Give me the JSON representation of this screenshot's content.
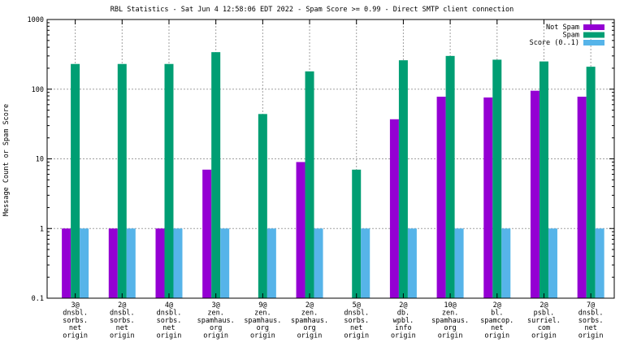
{
  "chart_data": {
    "type": "bar",
    "title": "RBL Statistics - Sat Jun  4 12:58:06 EDT 2022 - Spam Score >= 0.99 - Direct SMTP client connection",
    "ylabel": "Message Count or Spam Score",
    "xlabel": "",
    "yscale": "log",
    "ylim": [
      0.1,
      1000
    ],
    "yticks": [
      "0.1",
      "1",
      "10",
      "100",
      "1000"
    ],
    "grid": true,
    "legend_position": "top-right",
    "categories": [
      [
        "3@",
        "dnsbl.",
        "sorbs.",
        "net",
        "origin"
      ],
      [
        "2@",
        "dnsbl.",
        "sorbs.",
        "net",
        "origin"
      ],
      [
        "4@",
        "dnsbl.",
        "sorbs.",
        "net",
        "origin"
      ],
      [
        "3@",
        "zen.",
        "spamhaus.",
        "org",
        "origin"
      ],
      [
        "9@",
        "zen.",
        "spamhaus.",
        "org",
        "origin"
      ],
      [
        "2@",
        "zen.",
        "spamhaus.",
        "org",
        "origin"
      ],
      [
        "5@",
        "dnsbl.",
        "sorbs.",
        "net",
        "origin"
      ],
      [
        "2@",
        "db.",
        "wpbl.",
        "info",
        "origin"
      ],
      [
        "10@",
        "zen.",
        "spamhaus.",
        "org",
        "origin"
      ],
      [
        "2@",
        "bl.",
        "spamcop.",
        "net",
        "origin"
      ],
      [
        "2@",
        "psbl.",
        "surriel.",
        "com",
        "origin"
      ],
      [
        "7@",
        "dnsbl.",
        "sorbs.",
        "net",
        "origin"
      ]
    ],
    "series": [
      {
        "name": "Not Spam",
        "color": "#9400d3",
        "values": [
          1,
          1,
          1,
          7,
          null,
          9,
          null,
          37,
          78,
          76,
          95,
          78
        ]
      },
      {
        "name": "Spam",
        "color": "#009e73",
        "values": [
          230,
          230,
          230,
          340,
          44,
          180,
          7,
          260,
          300,
          265,
          250,
          210
        ]
      },
      {
        "name": "Score (0..1)",
        "color": "#56b4e9",
        "values": [
          1,
          1,
          1,
          1,
          1,
          1,
          1,
          1,
          1,
          1,
          1,
          1
        ]
      }
    ]
  }
}
